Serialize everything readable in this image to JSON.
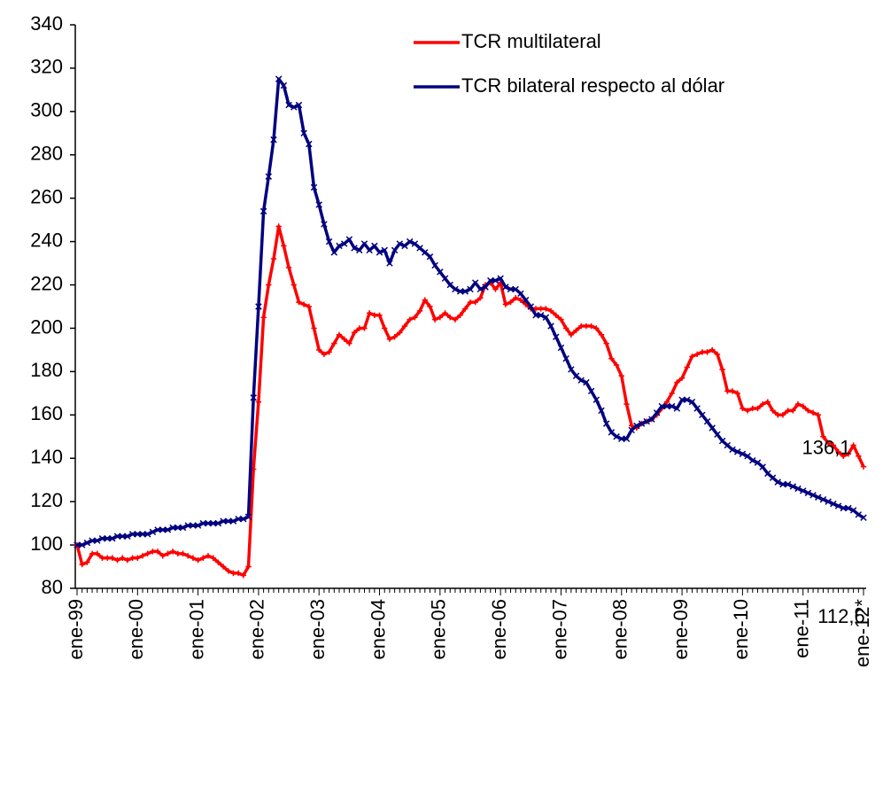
{
  "chart_data": {
    "type": "line",
    "categories": [
      "ene-99",
      null,
      null,
      null,
      null,
      null,
      null,
      null,
      null,
      null,
      null,
      null,
      "ene-00",
      null,
      null,
      null,
      null,
      null,
      null,
      null,
      null,
      null,
      null,
      null,
      "ene-01",
      null,
      null,
      null,
      null,
      null,
      null,
      null,
      null,
      null,
      null,
      null,
      "ene-02",
      null,
      null,
      null,
      null,
      null,
      null,
      null,
      null,
      null,
      null,
      null,
      "ene-03",
      null,
      null,
      null,
      null,
      null,
      null,
      null,
      null,
      null,
      null,
      null,
      "ene-04",
      null,
      null,
      null,
      null,
      null,
      null,
      null,
      null,
      null,
      null,
      null,
      "ene-05",
      null,
      null,
      null,
      null,
      null,
      null,
      null,
      null,
      null,
      null,
      null,
      "ene-06",
      null,
      null,
      null,
      null,
      null,
      null,
      null,
      null,
      null,
      null,
      null,
      "ene-07",
      null,
      null,
      null,
      null,
      null,
      null,
      null,
      null,
      null,
      null,
      null,
      "ene-08",
      null,
      null,
      null,
      null,
      null,
      null,
      null,
      null,
      null,
      null,
      null,
      "ene-09",
      null,
      null,
      null,
      null,
      null,
      null,
      null,
      null,
      null,
      null,
      null,
      "ene-10",
      null,
      null,
      null,
      null,
      null,
      null,
      null,
      null,
      null,
      null,
      null,
      "ene-11",
      null,
      null,
      null,
      null,
      null,
      null,
      null,
      null,
      null,
      null,
      null,
      "ene-12*"
    ],
    "series": [
      {
        "name": "TCR multilateral",
        "color": "#ff0000",
        "marker": "plus",
        "values": [
          100,
          91,
          92,
          96,
          96,
          94,
          94,
          94,
          93,
          94,
          93,
          94,
          94,
          95,
          96,
          97,
          97,
          95,
          96,
          97,
          96,
          96,
          95,
          94,
          93,
          94,
          95,
          94,
          92,
          90,
          88,
          87,
          87,
          86,
          90,
          135,
          166,
          205,
          220,
          232,
          247,
          238,
          228,
          220,
          212,
          211,
          210,
          200,
          190,
          188,
          189,
          193,
          197,
          195,
          193,
          198,
          200,
          200,
          207,
          206,
          206,
          200,
          195,
          196,
          198,
          201,
          204,
          205,
          208,
          213,
          210,
          204,
          205,
          207,
          205,
          204,
          206,
          209,
          212,
          212,
          214,
          220,
          221,
          218,
          221,
          211,
          212,
          214,
          213,
          211,
          209,
          209,
          209,
          209,
          208,
          206,
          204,
          200,
          197,
          199,
          201,
          201,
          201,
          200,
          197,
          193,
          186,
          183,
          178,
          165,
          155,
          154,
          156,
          157,
          158,
          160,
          163,
          166,
          170,
          175,
          177,
          182,
          187,
          188,
          189,
          189,
          190,
          188,
          181,
          171,
          171,
          170,
          163,
          162,
          163,
          163,
          165,
          166,
          162,
          160,
          160,
          162,
          162,
          165,
          164,
          162,
          161,
          160,
          150,
          147,
          146,
          143,
          141,
          142,
          146,
          141,
          136.1
        ],
        "value_labels": [
          null,
          null,
          null,
          null,
          null,
          null,
          null,
          null,
          null,
          null,
          null,
          null,
          null,
          null,
          null,
          null,
          null,
          null,
          null,
          null,
          null,
          null,
          null,
          null,
          null,
          null,
          null,
          null,
          null,
          null,
          null,
          null,
          null,
          null,
          null,
          null,
          null,
          null,
          null,
          null,
          null,
          null,
          null,
          null,
          null,
          null,
          null,
          null,
          null,
          null,
          null,
          null,
          null,
          null,
          null,
          null,
          null,
          null,
          null,
          null,
          null,
          null,
          null,
          null,
          null,
          null,
          null,
          null,
          null,
          null,
          null,
          null,
          null,
          null,
          null,
          null,
          null,
          null,
          null,
          null,
          null,
          null,
          null,
          null,
          null,
          null,
          null,
          null,
          null,
          null,
          null,
          null,
          null,
          null,
          null,
          null,
          null,
          null,
          null,
          null,
          null,
          null,
          null,
          null,
          null,
          null,
          null,
          null,
          null,
          null,
          null,
          null,
          null,
          null,
          null,
          null,
          null,
          null,
          null,
          null,
          null,
          null,
          null,
          null,
          null,
          null,
          null,
          null,
          null,
          null,
          null,
          null,
          null,
          null,
          null,
          null,
          null,
          null,
          null,
          null,
          null,
          null,
          null,
          null,
          null,
          null,
          null,
          null,
          null,
          null,
          null,
          null,
          null,
          null,
          null,
          null,
          "136,1"
        ]
      },
      {
        "name": "TCR bilateral respecto al dólar",
        "color": "#000080",
        "marker": "cross",
        "values": [
          100,
          100,
          101,
          102,
          102,
          103,
          103,
          103,
          104,
          104,
          104,
          105,
          105,
          105,
          105,
          106,
          107,
          107,
          107,
          108,
          108,
          108,
          109,
          109,
          109,
          110,
          110,
          110,
          110,
          111,
          111,
          111,
          112,
          112,
          113,
          168,
          210,
          254,
          270,
          287,
          315,
          312,
          303,
          302,
          303,
          290,
          285,
          265,
          257,
          248,
          240,
          235,
          238,
          239,
          241,
          237,
          236,
          239,
          236,
          238,
          235,
          236,
          230,
          236,
          239,
          238,
          240,
          239,
          237,
          235,
          233,
          229,
          226,
          223,
          220,
          218,
          217,
          217,
          218,
          221,
          218,
          219,
          222,
          222,
          223,
          219,
          218,
          218,
          216,
          213,
          210,
          206,
          206,
          205,
          201,
          196,
          191,
          186,
          181,
          178,
          176,
          175,
          171,
          167,
          162,
          156,
          152,
          150,
          149,
          149,
          153,
          155,
          156,
          157,
          158,
          161,
          164,
          164,
          164,
          163,
          167,
          167,
          166,
          163,
          160,
          157,
          154,
          151,
          148,
          146,
          144,
          143,
          142,
          141,
          139,
          138,
          136,
          133,
          131,
          129,
          128,
          128,
          127,
          126,
          125,
          124,
          123,
          122,
          121,
          120,
          119,
          118,
          117,
          117,
          116,
          114,
          112.6
        ],
        "value_labels": [
          null,
          null,
          null,
          null,
          null,
          null,
          null,
          null,
          null,
          null,
          null,
          null,
          null,
          null,
          null,
          null,
          null,
          null,
          null,
          null,
          null,
          null,
          null,
          null,
          null,
          null,
          null,
          null,
          null,
          null,
          null,
          null,
          null,
          null,
          null,
          null,
          null,
          null,
          null,
          null,
          null,
          null,
          null,
          null,
          null,
          null,
          null,
          null,
          null,
          null,
          null,
          null,
          null,
          null,
          null,
          null,
          null,
          null,
          null,
          null,
          null,
          null,
          null,
          null,
          null,
          null,
          null,
          null,
          null,
          null,
          null,
          null,
          null,
          null,
          null,
          null,
          null,
          null,
          null,
          null,
          null,
          null,
          null,
          null,
          null,
          null,
          null,
          null,
          null,
          null,
          null,
          null,
          null,
          null,
          null,
          null,
          null,
          null,
          null,
          null,
          null,
          null,
          null,
          null,
          null,
          null,
          null,
          null,
          null,
          null,
          null,
          null,
          null,
          null,
          null,
          null,
          null,
          null,
          null,
          null,
          null,
          null,
          null,
          null,
          null,
          null,
          null,
          null,
          null,
          null,
          null,
          null,
          null,
          null,
          null,
          null,
          null,
          null,
          null,
          null,
          null,
          null,
          null,
          null,
          null,
          null,
          null,
          null,
          null,
          null,
          null,
          null,
          null,
          null,
          null,
          null,
          "112,6"
        ]
      }
    ],
    "ylim": [
      80,
      340
    ],
    "yticks": [
      80,
      100,
      120,
      140,
      160,
      180,
      200,
      220,
      240,
      260,
      280,
      300,
      320,
      340
    ],
    "grid": false,
    "legend": "upper right"
  }
}
